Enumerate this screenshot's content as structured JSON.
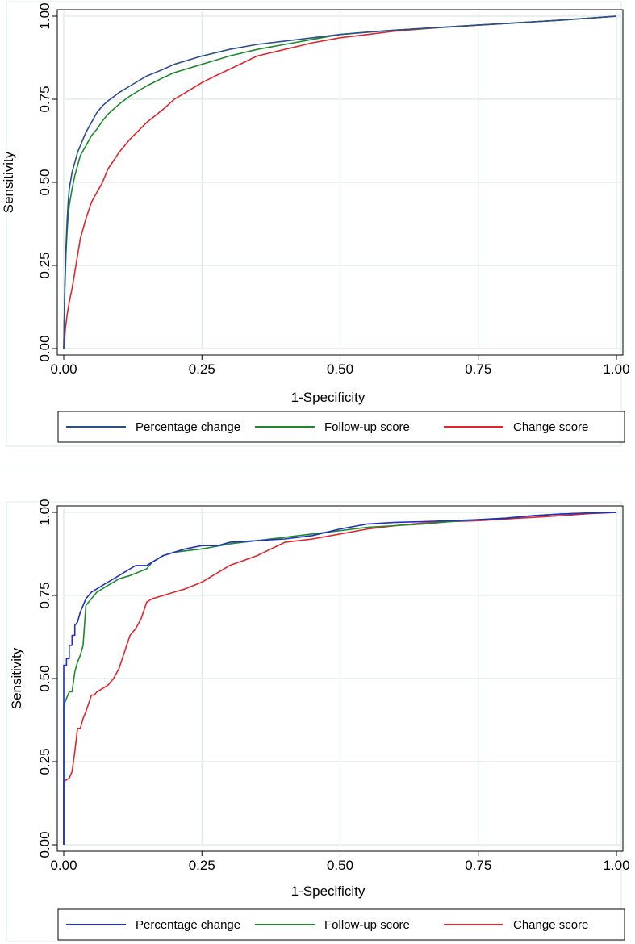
{
  "colors": {
    "grid": "#e3ecec",
    "frame": "#000000",
    "outer_border": "#dde8ea"
  },
  "chart_data": [
    {
      "type": "line",
      "title": "",
      "xlabel": "1-Specificity",
      "ylabel": "Sensitivity",
      "xlim": [
        0,
        1
      ],
      "ylim": [
        0,
        1
      ],
      "grid": true,
      "legend_position": "bottom",
      "x_ticks": [
        "0.00",
        "0.25",
        "0.50",
        "0.75",
        "1.00"
      ],
      "y_ticks": [
        "0.00",
        "0.25",
        "0.50",
        "0.75",
        "1.00"
      ],
      "series": [
        {
          "name": "Percentage change",
          "color": "#2a4f8f",
          "x": [
            0,
            0.002,
            0.004,
            0.006,
            0.008,
            0.01,
            0.015,
            0.02,
            0.025,
            0.03,
            0.04,
            0.05,
            0.06,
            0.07,
            0.08,
            0.1,
            0.12,
            0.15,
            0.18,
            0.2,
            0.25,
            0.3,
            0.35,
            0.4,
            0.45,
            0.5,
            0.55,
            0.6,
            0.65,
            0.7,
            0.75,
            0.8,
            0.85,
            0.9,
            0.95,
            1.0
          ],
          "y": [
            0,
            0.2,
            0.3,
            0.38,
            0.44,
            0.48,
            0.53,
            0.56,
            0.59,
            0.61,
            0.65,
            0.68,
            0.71,
            0.73,
            0.745,
            0.77,
            0.79,
            0.82,
            0.84,
            0.855,
            0.88,
            0.9,
            0.915,
            0.925,
            0.935,
            0.945,
            0.952,
            0.958,
            0.963,
            0.968,
            0.973,
            0.978,
            0.983,
            0.988,
            0.994,
            1.0
          ]
        },
        {
          "name": "Follow-up score",
          "color": "#1d8a2c",
          "x": [
            0,
            0.002,
            0.004,
            0.006,
            0.008,
            0.01,
            0.015,
            0.02,
            0.025,
            0.03,
            0.04,
            0.05,
            0.06,
            0.07,
            0.08,
            0.1,
            0.12,
            0.15,
            0.18,
            0.2,
            0.25,
            0.3,
            0.35,
            0.4,
            0.45,
            0.5,
            0.55,
            0.6,
            0.65,
            0.7,
            0.75,
            0.8,
            0.85,
            0.9,
            0.95,
            1.0
          ],
          "y": [
            0,
            0.18,
            0.28,
            0.35,
            0.4,
            0.43,
            0.48,
            0.52,
            0.55,
            0.58,
            0.61,
            0.64,
            0.66,
            0.685,
            0.705,
            0.735,
            0.76,
            0.79,
            0.815,
            0.83,
            0.855,
            0.88,
            0.9,
            0.915,
            0.93,
            0.945,
            0.952,
            0.958,
            0.963,
            0.968,
            0.973,
            0.978,
            0.983,
            0.988,
            0.994,
            1.0
          ]
        },
        {
          "name": "Change score",
          "color": "#e0262b",
          "x": [
            0,
            0.003,
            0.006,
            0.01,
            0.015,
            0.02,
            0.025,
            0.03,
            0.04,
            0.05,
            0.06,
            0.07,
            0.08,
            0.1,
            0.12,
            0.15,
            0.18,
            0.2,
            0.22,
            0.25,
            0.28,
            0.3,
            0.35,
            0.4,
            0.45,
            0.5,
            0.55,
            0.6,
            0.65,
            0.7,
            0.75,
            0.8,
            0.85,
            0.9,
            0.95,
            1.0
          ],
          "y": [
            0,
            0.06,
            0.1,
            0.14,
            0.18,
            0.23,
            0.28,
            0.33,
            0.39,
            0.44,
            0.47,
            0.5,
            0.54,
            0.59,
            0.63,
            0.68,
            0.72,
            0.75,
            0.77,
            0.8,
            0.825,
            0.84,
            0.88,
            0.9,
            0.92,
            0.935,
            0.945,
            0.955,
            0.962,
            0.968,
            0.973,
            0.978,
            0.983,
            0.988,
            0.994,
            1.0
          ]
        }
      ]
    },
    {
      "type": "line",
      "title": "",
      "xlabel": "1-Specificity",
      "ylabel": "Sensitivity",
      "xlim": [
        0,
        1
      ],
      "ylim": [
        0,
        1
      ],
      "grid": true,
      "legend_position": "bottom",
      "x_ticks": [
        "0.00",
        "0.25",
        "0.50",
        "0.75",
        "1.00"
      ],
      "y_ticks": [
        "0.00",
        "0.25",
        "0.50",
        "0.75",
        "1.00"
      ],
      "series": [
        {
          "name": "Percentage change",
          "color": "#1f2fc4",
          "x": [
            0,
            0,
            0.005,
            0.005,
            0.01,
            0.01,
            0.015,
            0.015,
            0.02,
            0.02,
            0.025,
            0.03,
            0.035,
            0.04,
            0.05,
            0.06,
            0.07,
            0.08,
            0.09,
            0.1,
            0.11,
            0.12,
            0.13,
            0.15,
            0.16,
            0.17,
            0.18,
            0.2,
            0.22,
            0.25,
            0.28,
            0.3,
            0.35,
            0.4,
            0.45,
            0.5,
            0.55,
            0.6,
            0.65,
            0.7,
            0.75,
            0.8,
            0.85,
            0.9,
            0.95,
            1.0
          ],
          "y": [
            0,
            0.54,
            0.54,
            0.56,
            0.56,
            0.6,
            0.6,
            0.63,
            0.63,
            0.66,
            0.67,
            0.7,
            0.72,
            0.74,
            0.76,
            0.77,
            0.78,
            0.79,
            0.8,
            0.81,
            0.82,
            0.83,
            0.84,
            0.84,
            0.85,
            0.86,
            0.87,
            0.88,
            0.89,
            0.9,
            0.9,
            0.91,
            0.915,
            0.92,
            0.93,
            0.95,
            0.965,
            0.97,
            0.972,
            0.975,
            0.978,
            0.982,
            0.99,
            0.995,
            0.998,
            1.0
          ]
        },
        {
          "name": "Follow-up score",
          "color": "#1d8a2c",
          "x": [
            0,
            0,
            0.005,
            0.01,
            0.015,
            0.02,
            0.025,
            0.03,
            0.035,
            0.04,
            0.05,
            0.06,
            0.08,
            0.1,
            0.12,
            0.15,
            0.16,
            0.18,
            0.2,
            0.25,
            0.3,
            0.35,
            0.4,
            0.45,
            0.5,
            0.55,
            0.6,
            0.65,
            0.7,
            0.75,
            0.8,
            0.85,
            0.9,
            0.95,
            1.0
          ],
          "y": [
            0,
            0.42,
            0.44,
            0.46,
            0.46,
            0.52,
            0.55,
            0.57,
            0.6,
            0.72,
            0.74,
            0.76,
            0.78,
            0.8,
            0.81,
            0.83,
            0.85,
            0.87,
            0.88,
            0.89,
            0.905,
            0.915,
            0.925,
            0.935,
            0.945,
            0.955,
            0.96,
            0.965,
            0.972,
            0.978,
            0.983,
            0.99,
            0.995,
            0.998,
            1.0
          ]
        },
        {
          "name": "Change score",
          "color": "#e0262b",
          "x": [
            0,
            0,
            0.01,
            0.015,
            0.02,
            0.025,
            0.03,
            0.035,
            0.04,
            0.05,
            0.055,
            0.06,
            0.07,
            0.08,
            0.09,
            0.1,
            0.11,
            0.12,
            0.13,
            0.14,
            0.15,
            0.16,
            0.18,
            0.2,
            0.22,
            0.25,
            0.28,
            0.3,
            0.35,
            0.4,
            0.45,
            0.5,
            0.55,
            0.6,
            0.65,
            0.7,
            0.75,
            0.8,
            0.85,
            0.9,
            0.95,
            1.0
          ],
          "y": [
            0,
            0.19,
            0.2,
            0.22,
            0.28,
            0.35,
            0.35,
            0.38,
            0.4,
            0.45,
            0.45,
            0.46,
            0.47,
            0.48,
            0.5,
            0.53,
            0.58,
            0.63,
            0.65,
            0.68,
            0.73,
            0.74,
            0.75,
            0.76,
            0.77,
            0.79,
            0.82,
            0.84,
            0.87,
            0.91,
            0.92,
            0.935,
            0.95,
            0.96,
            0.968,
            0.972,
            0.975,
            0.98,
            0.985,
            0.99,
            0.996,
            1.0
          ]
        }
      ]
    }
  ]
}
